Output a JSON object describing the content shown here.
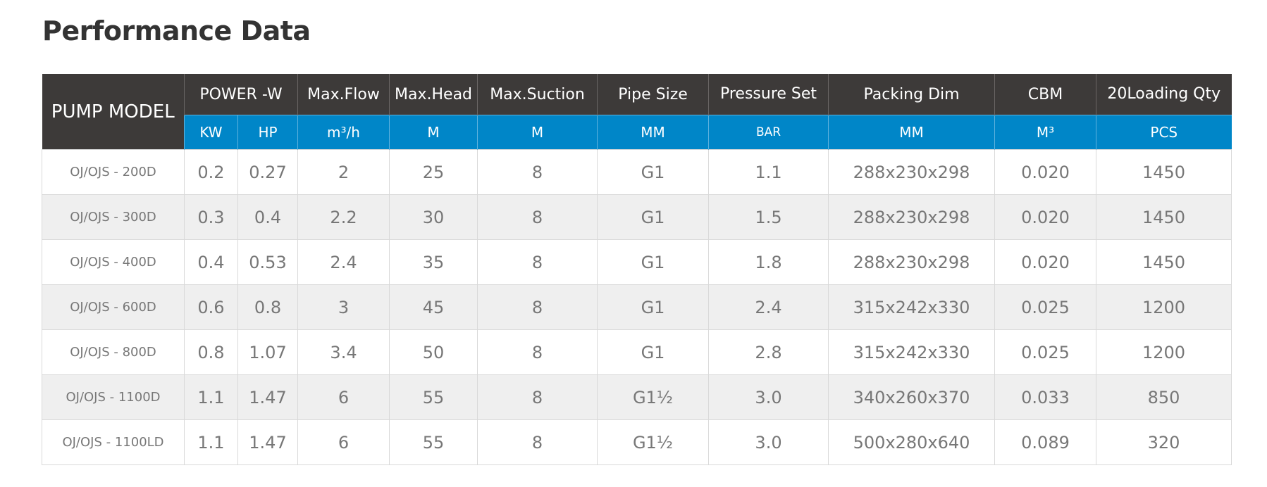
{
  "title": "Performance Data",
  "header": {
    "pump_model": "PUMP MODEL",
    "power": "POWER -W",
    "max_flow": "Max.Flow",
    "max_head": "Max.Head",
    "max_suction": "Max.Suction",
    "pipe_size": "Pipe Size",
    "pressure_set": "Pressure Set",
    "packing_dim": "Packing Dim",
    "cbm": "CBM",
    "loading_qty": "20Loading Qty"
  },
  "units": {
    "kw": "KW",
    "hp": "HP",
    "flow": "m³/h",
    "head": "M",
    "suction": "M",
    "pipe": "MM",
    "pressure": "BAR",
    "packing": "MM",
    "cbm": "M³",
    "qty": "PCS"
  },
  "rows": [
    {
      "model": "OJ/OJS - 200D",
      "kw": "0.2",
      "hp": "0.27",
      "flow": "2",
      "head": "25",
      "suction": "8",
      "pipe": "G1",
      "pressure": "1.1",
      "packing": "288x230x298",
      "cbm": "0.020",
      "qty": "1450"
    },
    {
      "model": "OJ/OJS - 300D",
      "kw": "0.3",
      "hp": "0.4",
      "flow": "2.2",
      "head": "30",
      "suction": "8",
      "pipe": "G1",
      "pressure": "1.5",
      "packing": "288x230x298",
      "cbm": "0.020",
      "qty": "1450"
    },
    {
      "model": "OJ/OJS - 400D",
      "kw": "0.4",
      "hp": "0.53",
      "flow": "2.4",
      "head": "35",
      "suction": "8",
      "pipe": "G1",
      "pressure": "1.8",
      "packing": "288x230x298",
      "cbm": "0.020",
      "qty": "1450"
    },
    {
      "model": "OJ/OJS - 600D",
      "kw": "0.6",
      "hp": "0.8",
      "flow": "3",
      "head": "45",
      "suction": "8",
      "pipe": "G1",
      "pressure": "2.4",
      "packing": "315x242x330",
      "cbm": "0.025",
      "qty": "1200"
    },
    {
      "model": "OJ/OJS - 800D",
      "kw": "0.8",
      "hp": "1.07",
      "flow": "3.4",
      "head": "50",
      "suction": "8",
      "pipe": "G1",
      "pressure": "2.8",
      "packing": "315x242x330",
      "cbm": "0.025",
      "qty": "1200"
    },
    {
      "model": "OJ/OJS - 1100D",
      "kw": "1.1",
      "hp": "1.47",
      "flow": "6",
      "head": "55",
      "suction": "8",
      "pipe": "G1½",
      "pressure": "3.0",
      "packing": "340x260x370",
      "cbm": "0.033",
      "qty": "850"
    },
    {
      "model": "OJ/OJS - 1100LD",
      "kw": "1.1",
      "hp": "1.47",
      "flow": "6",
      "head": "55",
      "suction": "8",
      "pipe": "G1½",
      "pressure": "3.0",
      "packing": "500x280x640",
      "cbm": "0.089",
      "qty": "320"
    }
  ]
}
